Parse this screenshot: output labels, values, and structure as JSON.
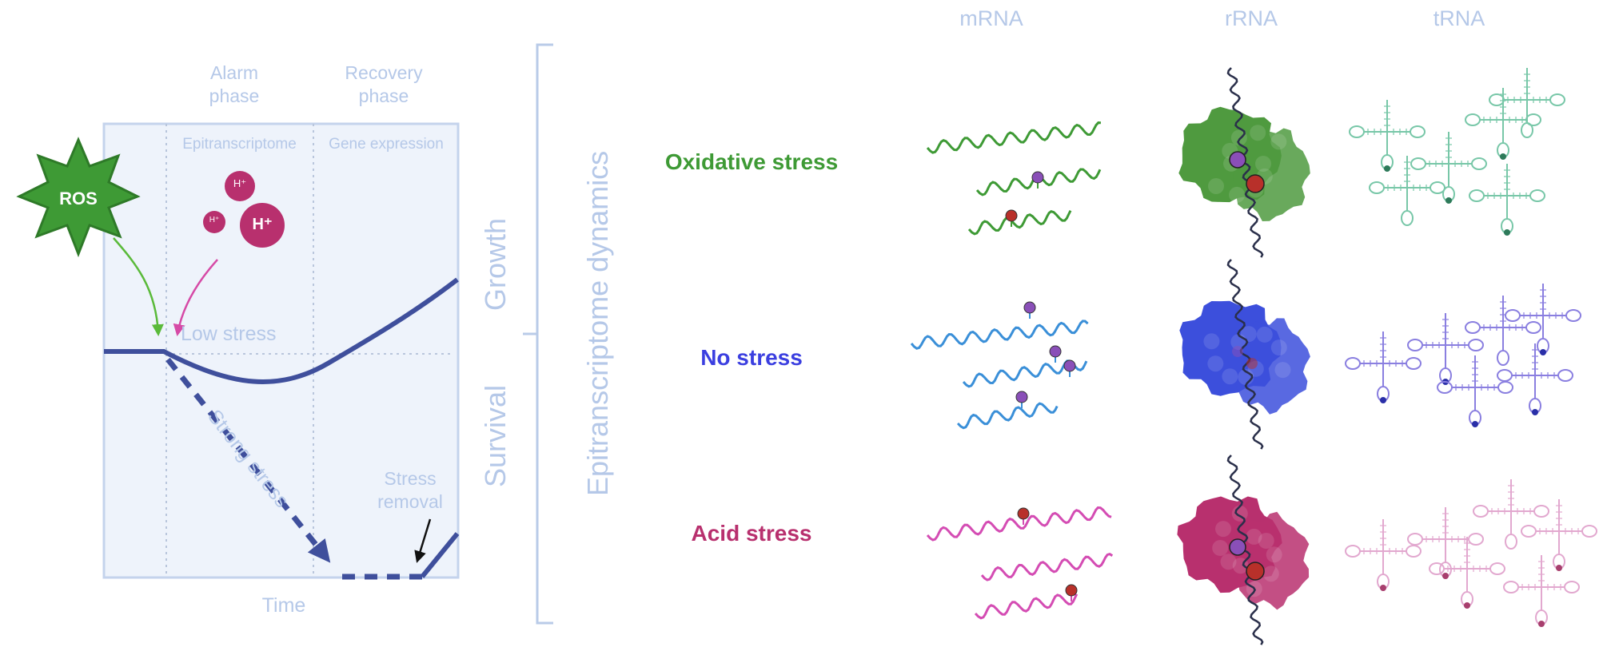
{
  "panel": {
    "phases": {
      "alarm": "Alarm\nphase",
      "recovery": "Recovery\nphase"
    },
    "subheaders": {
      "epitranscriptome": "Epitranscriptome",
      "gene_expression": "Gene expression"
    },
    "ros_label": "ROS",
    "proton_labels": {
      "large": "H⁺",
      "medium": "H⁺",
      "small": "H⁺"
    },
    "low_stress": "Low stress",
    "strong_stress": "Strong stress",
    "stress_removal": "Stress\nremoval",
    "time_label": "Time",
    "axis_labels": {
      "growth": "Growth",
      "survival": "Survival"
    }
  },
  "bracket_label": "Epitranscriptome dynamics",
  "column_headers": [
    "mRNA",
    "rRNA",
    "tRNA"
  ],
  "rows": [
    {
      "label": "Oxidative stress",
      "color": "#3e9a35",
      "rna_color": "#3e9a35",
      "ribo_color": "#4f9a3f",
      "trna_color": "#78c7a8"
    },
    {
      "label": "No stress",
      "color": "#3b3fe0",
      "rna_color": "#3a8fd8",
      "ribo_color": "#3c4fdc",
      "trna_color": "#8a7fe0"
    },
    {
      "label": "Acid stress",
      "color": "#b8306e",
      "rna_color": "#d44cb3",
      "ribo_color": "#b8306e",
      "trna_color": "#e2a8cf"
    }
  ],
  "colors": {
    "panel_bg": "#eef3fb",
    "panel_border": "#c4d3ec",
    "curve": "#3f4f9c",
    "pale_text": "#b5c8e8",
    "ros": "#3e9a35",
    "proton": "#b8306e",
    "mod_purple": "#8a4fb8",
    "mod_red": "#b8302a"
  }
}
